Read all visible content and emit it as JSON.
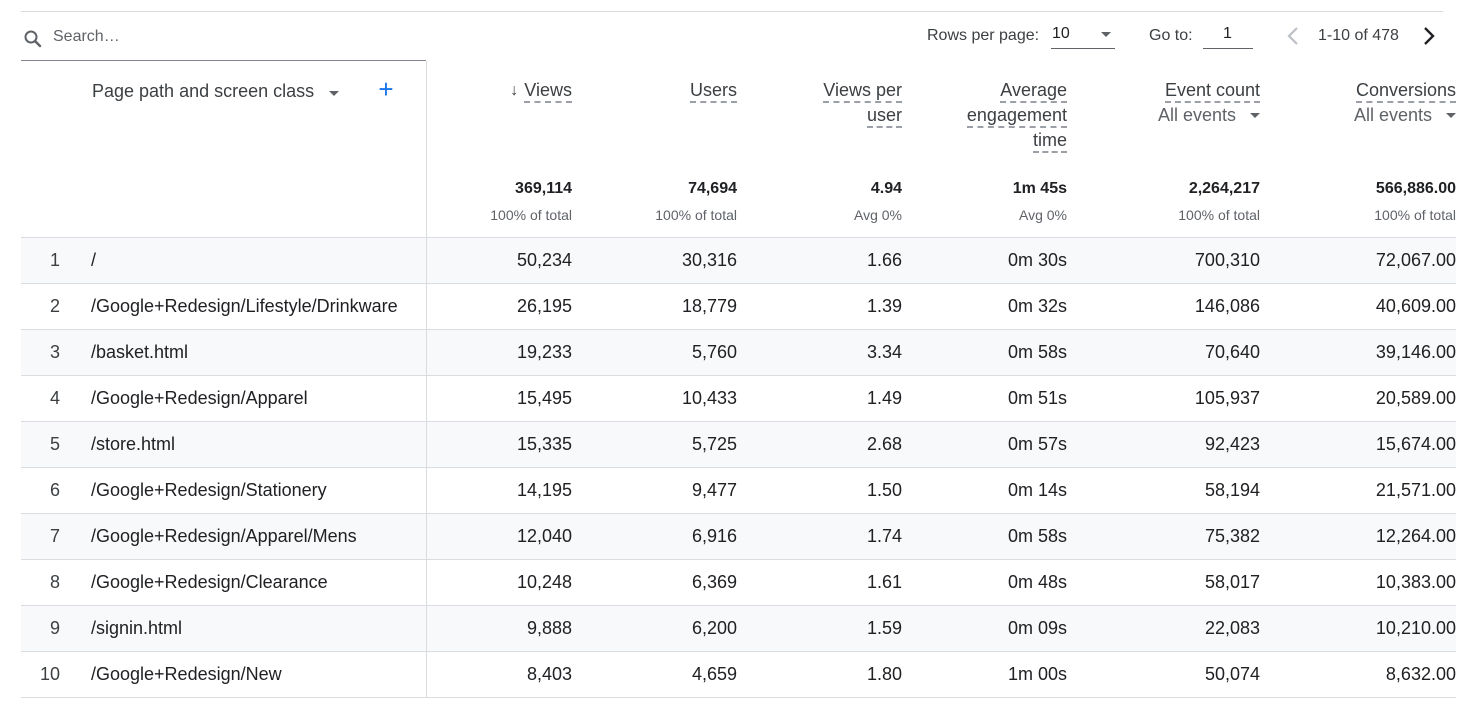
{
  "search": {
    "placeholder": "Search…"
  },
  "pagination": {
    "rows_per_page_label": "Rows per page:",
    "rows_per_page_value": "10",
    "goto_label": "Go to:",
    "goto_value": "1",
    "range_text": "1-10 of 478"
  },
  "dimension_header": {
    "label": "Page path and screen class",
    "add_label": "+"
  },
  "metric_headers": [
    {
      "title_lines": [
        "Views"
      ],
      "sorted": true,
      "sort_icon": "↓",
      "subtitle": "",
      "total": "369,114",
      "total_sub": "100% of total"
    },
    {
      "title_lines": [
        "Users"
      ],
      "sorted": false,
      "subtitle": "",
      "total": "74,694",
      "total_sub": "100% of total"
    },
    {
      "title_lines": [
        "Views per",
        "user"
      ],
      "sorted": false,
      "subtitle": "",
      "total": "4.94",
      "total_sub": "Avg 0%"
    },
    {
      "title_lines": [
        "Average",
        "engagement",
        "time"
      ],
      "sorted": false,
      "subtitle": "",
      "total": "1m 45s",
      "total_sub": "Avg 0%"
    },
    {
      "title_lines": [
        "Event count"
      ],
      "sorted": false,
      "subtitle": "All events",
      "total": "2,264,217",
      "total_sub": "100% of total"
    },
    {
      "title_lines": [
        "Conversions"
      ],
      "sorted": false,
      "subtitle": "All events",
      "total": "566,886.00",
      "total_sub": "100% of total"
    }
  ],
  "rows": [
    {
      "idx": "1",
      "path": "/",
      "views": "50,234",
      "users": "30,316",
      "vpu": "1.66",
      "aet": "0m 30s",
      "events": "700,310",
      "conversions": "72,067.00"
    },
    {
      "idx": "2",
      "path": "/Google+Redesign/Lifestyle/Drinkware",
      "views": "26,195",
      "users": "18,779",
      "vpu": "1.39",
      "aet": "0m 32s",
      "events": "146,086",
      "conversions": "40,609.00"
    },
    {
      "idx": "3",
      "path": "/basket.html",
      "views": "19,233",
      "users": "5,760",
      "vpu": "3.34",
      "aet": "0m 58s",
      "events": "70,640",
      "conversions": "39,146.00"
    },
    {
      "idx": "4",
      "path": "/Google+Redesign/Apparel",
      "views": "15,495",
      "users": "10,433",
      "vpu": "1.49",
      "aet": "0m 51s",
      "events": "105,937",
      "conversions": "20,589.00"
    },
    {
      "idx": "5",
      "path": "/store.html",
      "views": "15,335",
      "users": "5,725",
      "vpu": "2.68",
      "aet": "0m 57s",
      "events": "92,423",
      "conversions": "15,674.00"
    },
    {
      "idx": "6",
      "path": "/Google+Redesign/Stationery",
      "views": "14,195",
      "users": "9,477",
      "vpu": "1.50",
      "aet": "0m 14s",
      "events": "58,194",
      "conversions": "21,571.00"
    },
    {
      "idx": "7",
      "path": "/Google+Redesign/Apparel/Mens",
      "views": "12,040",
      "users": "6,916",
      "vpu": "1.74",
      "aet": "0m 58s",
      "events": "75,382",
      "conversions": "12,264.00"
    },
    {
      "idx": "8",
      "path": "/Google+Redesign/Clearance",
      "views": "10,248",
      "users": "6,369",
      "vpu": "1.61",
      "aet": "0m 48s",
      "events": "58,017",
      "conversions": "10,383.00"
    },
    {
      "idx": "9",
      "path": "/signin.html",
      "views": "9,888",
      "users": "6,200",
      "vpu": "1.59",
      "aet": "0m 09s",
      "events": "22,083",
      "conversions": "10,210.00"
    },
    {
      "idx": "10",
      "path": "/Google+Redesign/New",
      "views": "8,403",
      "users": "4,659",
      "vpu": "1.80",
      "aet": "1m 00s",
      "events": "50,074",
      "conversions": "8,632.00"
    }
  ]
}
